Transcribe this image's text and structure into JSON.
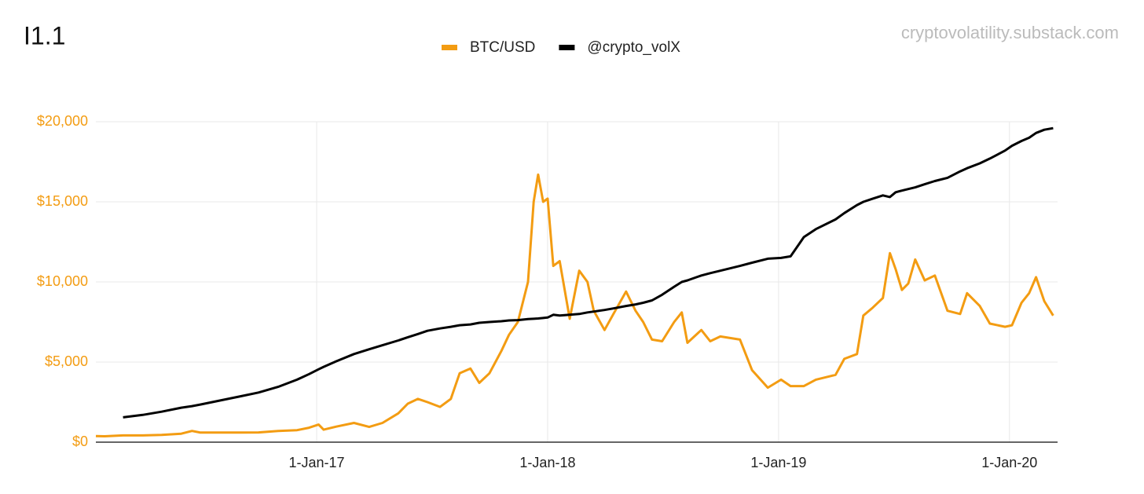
{
  "chart_data": {
    "type": "line",
    "title": "I1.1",
    "annotation": "cryptovolatility.substack.com",
    "x": [
      "2016-01-18",
      "2016-02-01",
      "2016-03-01",
      "2016-04-01",
      "2016-05-01",
      "2016-06-01",
      "2016-06-18",
      "2016-07-01",
      "2016-08-01",
      "2016-09-01",
      "2016-10-01",
      "2016-11-01",
      "2016-12-01",
      "2016-12-20",
      "2017-01-04",
      "2017-01-12",
      "2017-02-01",
      "2017-03-01",
      "2017-03-25",
      "2017-04-15",
      "2017-05-10",
      "2017-05-25",
      "2017-06-10",
      "2017-06-25",
      "2017-07-15",
      "2017-08-01",
      "2017-08-15",
      "2017-09-01",
      "2017-09-15",
      "2017-10-01",
      "2017-10-20",
      "2017-11-01",
      "2017-11-15",
      "2017-12-01",
      "2017-12-10",
      "2017-12-17",
      "2017-12-25",
      "2018-01-01",
      "2018-01-10",
      "2018-01-20",
      "2018-02-05",
      "2018-02-20",
      "2018-03-05",
      "2018-03-15",
      "2018-04-01",
      "2018-04-15",
      "2018-05-05",
      "2018-05-20",
      "2018-06-01",
      "2018-06-15",
      "2018-07-01",
      "2018-07-20",
      "2018-08-01",
      "2018-08-10",
      "2018-09-01",
      "2018-09-15",
      "2018-10-01",
      "2018-11-01",
      "2018-11-20",
      "2018-12-15",
      "2019-01-05",
      "2019-01-20",
      "2019-02-10",
      "2019-03-01",
      "2019-04-01",
      "2019-04-15",
      "2019-05-05",
      "2019-05-15",
      "2019-05-30",
      "2019-06-15",
      "2019-06-26",
      "2019-07-05",
      "2019-07-15",
      "2019-07-25",
      "2019-08-05",
      "2019-08-20",
      "2019-09-05",
      "2019-09-25",
      "2019-10-15",
      "2019-10-26",
      "2019-11-15",
      "2019-12-01",
      "2019-12-25",
      "2020-01-05",
      "2020-01-20",
      "2020-02-01",
      "2020-02-12",
      "2020-02-25",
      "2020-03-10"
    ],
    "series": [
      {
        "name": "BTC/USD",
        "color": "#f39c12",
        "values": [
          380,
          370,
          420,
          420,
          450,
          530,
          700,
          600,
          600,
          600,
          610,
          700,
          750,
          900,
          1100,
          780,
          970,
          1200,
          950,
          1200,
          1800,
          2400,
          2700,
          2500,
          2200,
          2700,
          4300,
          4600,
          3700,
          4300,
          5700,
          6700,
          7500,
          10000,
          15000,
          16700,
          15000,
          15200,
          11000,
          11300,
          7700,
          10700,
          10000,
          8200,
          7000,
          8000,
          9400,
          8200,
          7500,
          6400,
          6300,
          7500,
          8100,
          6200,
          7000,
          6300,
          6600,
          6400,
          4500,
          3400,
          3900,
          3500,
          3500,
          3900,
          4200,
          5200,
          5500,
          7900,
          8400,
          9000,
          11800,
          10800,
          9500,
          9900,
          11400,
          10100,
          10400,
          8200,
          8000,
          9300,
          8500,
          7400,
          7200,
          7300,
          8700,
          9300,
          10300,
          8800,
          7900
        ]
      },
      {
        "name": "@crypto_volX",
        "color": "#000000",
        "values": [
          null,
          null,
          1550,
          1700,
          1900,
          2150,
          2250,
          2350,
          2600,
          2850,
          3100,
          3450,
          3900,
          4250,
          4550,
          4700,
          5050,
          5500,
          5800,
          6050,
          6350,
          6550,
          6750,
          6950,
          7100,
          7200,
          7300,
          7350,
          7450,
          7500,
          7550,
          7600,
          7620,
          7680,
          7700,
          7720,
          7750,
          7780,
          7950,
          7900,
          7950,
          8000,
          8100,
          8150,
          8250,
          8350,
          8500,
          8600,
          8700,
          8850,
          9200,
          9700,
          10000,
          10100,
          10400,
          10550,
          10700,
          11000,
          11200,
          11450,
          11500,
          11600,
          12800,
          13300,
          13900,
          14300,
          14800,
          15000,
          15200,
          15400,
          15300,
          15600,
          15700,
          15800,
          15900,
          16100,
          16300,
          16500,
          16900,
          17100,
          17400,
          17700,
          18200,
          18500,
          18800,
          19000,
          19300,
          19500,
          19600
        ]
      }
    ],
    "xlim": [
      "2016-01-18",
      "2020-03-17"
    ],
    "xticks": [
      {
        "value": "2017-01-01",
        "label": "1-Jan-17"
      },
      {
        "value": "2018-01-01",
        "label": "1-Jan-18"
      },
      {
        "value": "2019-01-01",
        "label": "1-Jan-19"
      },
      {
        "value": "2020-01-01",
        "label": "1-Jan-20"
      }
    ],
    "ylim": [
      0,
      20000
    ],
    "yticks": [
      {
        "value": 0,
        "label": "$0"
      },
      {
        "value": 5000,
        "label": "$5,000"
      },
      {
        "value": 10000,
        "label": "$10,000"
      },
      {
        "value": 15000,
        "label": "$15,000"
      },
      {
        "value": 20000,
        "label": "$20,000"
      }
    ],
    "grid": true,
    "legend": "top"
  }
}
